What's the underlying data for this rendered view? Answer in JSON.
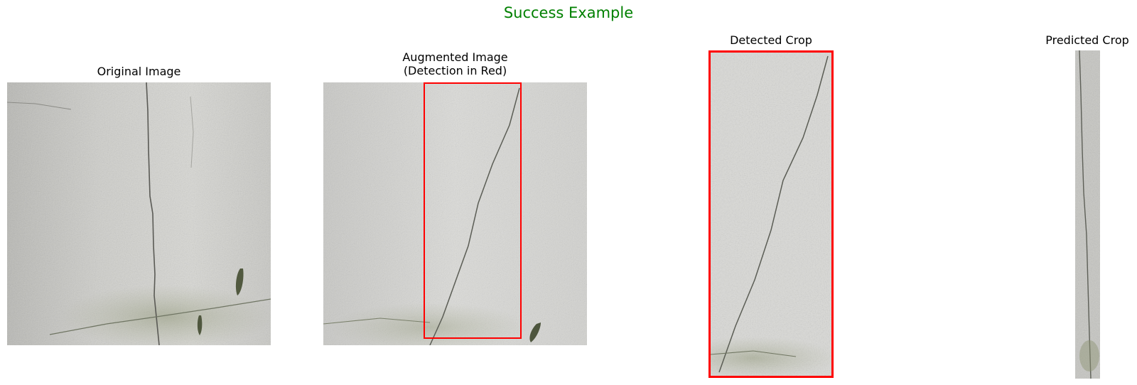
{
  "figure": {
    "title": "Success Example",
    "title_color": "#008000",
    "detection_color": "#ff0000"
  },
  "panels": [
    {
      "title": "Original Image"
    },
    {
      "title_line1": "Augmented Image",
      "title_line2": "(Detection in Red)"
    },
    {
      "title": "Detected Crop"
    },
    {
      "title": "Predicted Crop"
    }
  ]
}
